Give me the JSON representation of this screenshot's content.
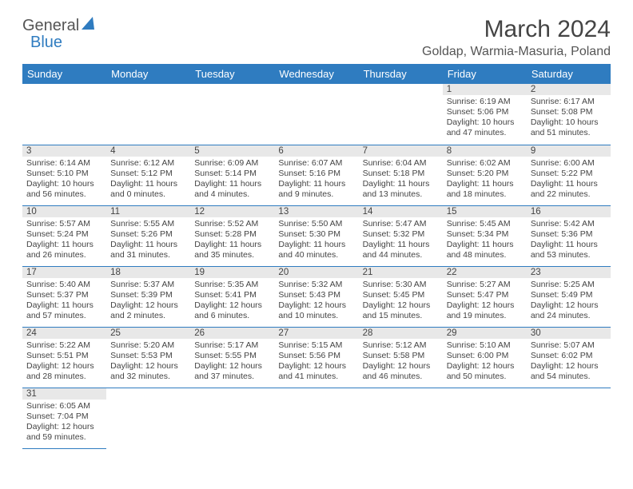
{
  "logo": {
    "text1": "General",
    "text2": "Blue"
  },
  "title": "March 2024",
  "location": "Goldap, Warmia-Masuria, Poland",
  "colors": {
    "header_bg": "#2f7cc0",
    "header_text": "#ffffff",
    "daynum_bg": "#e8e8e8",
    "border": "#2f7cc0"
  },
  "fonts": {
    "title_size": 30,
    "location_size": 16,
    "dayheader_size": 13,
    "daynum_size": 11.5,
    "content_size": 10.5
  },
  "day_headers": [
    "Sunday",
    "Monday",
    "Tuesday",
    "Wednesday",
    "Thursday",
    "Friday",
    "Saturday"
  ],
  "weeks": [
    [
      null,
      null,
      null,
      null,
      null,
      {
        "n": "1",
        "sr": "6:19 AM",
        "ss": "5:06 PM",
        "dl": "10 hours and 47 minutes."
      },
      {
        "n": "2",
        "sr": "6:17 AM",
        "ss": "5:08 PM",
        "dl": "10 hours and 51 minutes."
      }
    ],
    [
      {
        "n": "3",
        "sr": "6:14 AM",
        "ss": "5:10 PM",
        "dl": "10 hours and 56 minutes."
      },
      {
        "n": "4",
        "sr": "6:12 AM",
        "ss": "5:12 PM",
        "dl": "11 hours and 0 minutes."
      },
      {
        "n": "5",
        "sr": "6:09 AM",
        "ss": "5:14 PM",
        "dl": "11 hours and 4 minutes."
      },
      {
        "n": "6",
        "sr": "6:07 AM",
        "ss": "5:16 PM",
        "dl": "11 hours and 9 minutes."
      },
      {
        "n": "7",
        "sr": "6:04 AM",
        "ss": "5:18 PM",
        "dl": "11 hours and 13 minutes."
      },
      {
        "n": "8",
        "sr": "6:02 AM",
        "ss": "5:20 PM",
        "dl": "11 hours and 18 minutes."
      },
      {
        "n": "9",
        "sr": "6:00 AM",
        "ss": "5:22 PM",
        "dl": "11 hours and 22 minutes."
      }
    ],
    [
      {
        "n": "10",
        "sr": "5:57 AM",
        "ss": "5:24 PM",
        "dl": "11 hours and 26 minutes."
      },
      {
        "n": "11",
        "sr": "5:55 AM",
        "ss": "5:26 PM",
        "dl": "11 hours and 31 minutes."
      },
      {
        "n": "12",
        "sr": "5:52 AM",
        "ss": "5:28 PM",
        "dl": "11 hours and 35 minutes."
      },
      {
        "n": "13",
        "sr": "5:50 AM",
        "ss": "5:30 PM",
        "dl": "11 hours and 40 minutes."
      },
      {
        "n": "14",
        "sr": "5:47 AM",
        "ss": "5:32 PM",
        "dl": "11 hours and 44 minutes."
      },
      {
        "n": "15",
        "sr": "5:45 AM",
        "ss": "5:34 PM",
        "dl": "11 hours and 48 minutes."
      },
      {
        "n": "16",
        "sr": "5:42 AM",
        "ss": "5:36 PM",
        "dl": "11 hours and 53 minutes."
      }
    ],
    [
      {
        "n": "17",
        "sr": "5:40 AM",
        "ss": "5:37 PM",
        "dl": "11 hours and 57 minutes."
      },
      {
        "n": "18",
        "sr": "5:37 AM",
        "ss": "5:39 PM",
        "dl": "12 hours and 2 minutes."
      },
      {
        "n": "19",
        "sr": "5:35 AM",
        "ss": "5:41 PM",
        "dl": "12 hours and 6 minutes."
      },
      {
        "n": "20",
        "sr": "5:32 AM",
        "ss": "5:43 PM",
        "dl": "12 hours and 10 minutes."
      },
      {
        "n": "21",
        "sr": "5:30 AM",
        "ss": "5:45 PM",
        "dl": "12 hours and 15 minutes."
      },
      {
        "n": "22",
        "sr": "5:27 AM",
        "ss": "5:47 PM",
        "dl": "12 hours and 19 minutes."
      },
      {
        "n": "23",
        "sr": "5:25 AM",
        "ss": "5:49 PM",
        "dl": "12 hours and 24 minutes."
      }
    ],
    [
      {
        "n": "24",
        "sr": "5:22 AM",
        "ss": "5:51 PM",
        "dl": "12 hours and 28 minutes."
      },
      {
        "n": "25",
        "sr": "5:20 AM",
        "ss": "5:53 PM",
        "dl": "12 hours and 32 minutes."
      },
      {
        "n": "26",
        "sr": "5:17 AM",
        "ss": "5:55 PM",
        "dl": "12 hours and 37 minutes."
      },
      {
        "n": "27",
        "sr": "5:15 AM",
        "ss": "5:56 PM",
        "dl": "12 hours and 41 minutes."
      },
      {
        "n": "28",
        "sr": "5:12 AM",
        "ss": "5:58 PM",
        "dl": "12 hours and 46 minutes."
      },
      {
        "n": "29",
        "sr": "5:10 AM",
        "ss": "6:00 PM",
        "dl": "12 hours and 50 minutes."
      },
      {
        "n": "30",
        "sr": "5:07 AM",
        "ss": "6:02 PM",
        "dl": "12 hours and 54 minutes."
      }
    ],
    [
      {
        "n": "31",
        "sr": "6:05 AM",
        "ss": "7:04 PM",
        "dl": "12 hours and 59 minutes."
      },
      null,
      null,
      null,
      null,
      null,
      null
    ]
  ],
  "labels": {
    "sunrise": "Sunrise:",
    "sunset": "Sunset:",
    "daylight": "Daylight:"
  }
}
